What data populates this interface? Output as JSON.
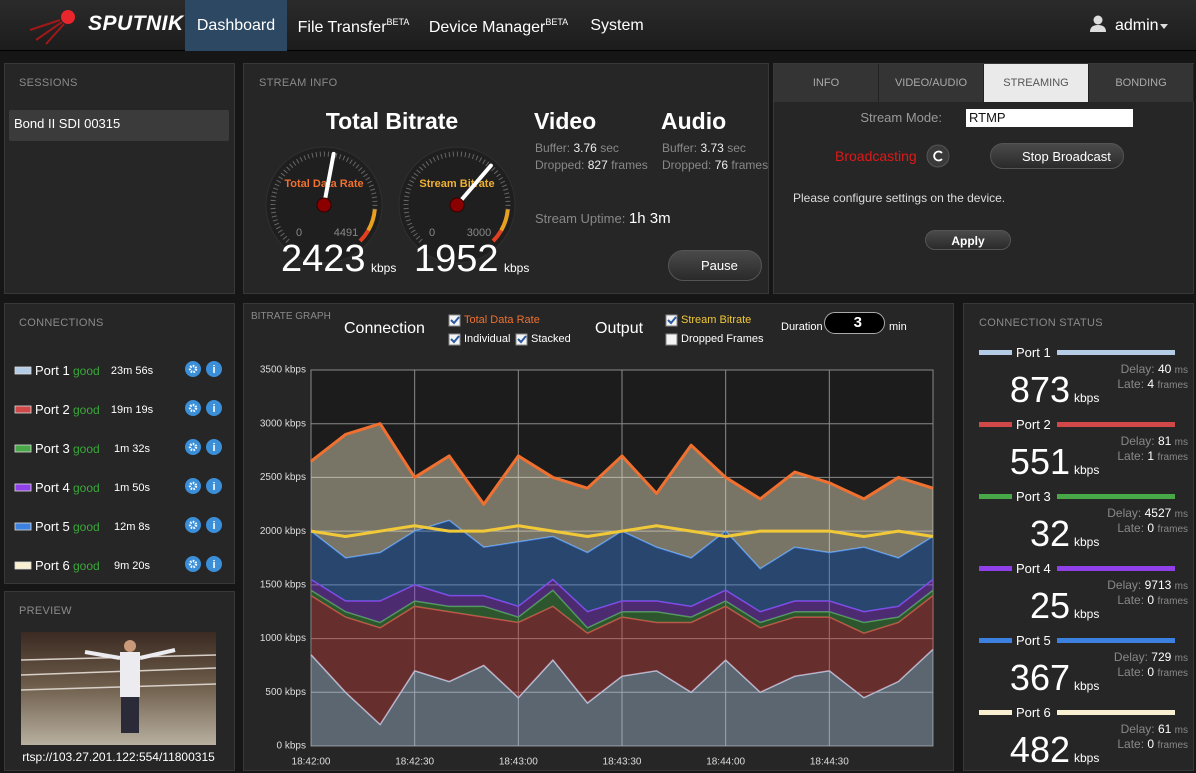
{
  "nav": {
    "brand": "SPUTNIK",
    "tabs": [
      {
        "label": "Dashboard"
      },
      {
        "label": "File Transfer",
        "badge": "BETA"
      },
      {
        "label": "Device Manager",
        "badge": "BETA"
      },
      {
        "label": "System"
      }
    ],
    "active": 0,
    "user": "admin"
  },
  "sessions": {
    "title": "SESSIONS",
    "items": [
      "Bond II SDI 00315"
    ]
  },
  "stream_info": {
    "title": "STREAM INFO",
    "total": {
      "heading": "Total Bitrate",
      "gauge_label": "Total Data Rate",
      "min": 0,
      "max": 4491,
      "value": 2423,
      "unit": "kbps"
    },
    "stream": {
      "gauge_label": "Stream Bitrate",
      "min": 0,
      "max": 3000,
      "value": 1952,
      "unit": "kbps"
    },
    "video": {
      "heading": "Video",
      "buffer_label": "Buffer:",
      "buffer": 3.76,
      "buffer_unit": "sec",
      "dropped_label": "Dropped:",
      "dropped": 827,
      "dropped_unit": "frames"
    },
    "audio": {
      "heading": "Audio",
      "buffer_label": "Buffer:",
      "buffer": 3.73,
      "buffer_unit": "sec",
      "dropped_label": "Dropped:",
      "dropped": 76,
      "dropped_unit": "frames"
    },
    "uptime_label": "Stream Uptime:",
    "uptime": "1h 3m",
    "pause": "Pause"
  },
  "settings": {
    "tabs": [
      "INFO",
      "VIDEO/AUDIO",
      "STREAMING",
      "BONDING"
    ],
    "active": 2,
    "mode_label": "Stream Mode:",
    "mode": "RTMP",
    "status": "Broadcasting",
    "stop": "Stop Broadcast",
    "message": "Please configure settings on the device.",
    "apply": "Apply"
  },
  "connections": {
    "title": "CONNECTIONS",
    "ports": [
      {
        "name": "Port 1",
        "status": "good",
        "uptime": "23m 56s"
      },
      {
        "name": "Port 2",
        "status": "good",
        "uptime": "19m 19s"
      },
      {
        "name": "Port 3",
        "status": "good",
        "uptime": "1m 32s"
      },
      {
        "name": "Port 4",
        "status": "good",
        "uptime": "1m 50s"
      },
      {
        "name": "Port 5",
        "status": "good",
        "uptime": "12m 8s"
      },
      {
        "name": "Port 6",
        "status": "good",
        "uptime": "9m 20s"
      }
    ]
  },
  "preview": {
    "title": "PREVIEW",
    "url": "rtsp://103.27.201.122:554/11800315"
  },
  "connection_status": {
    "title": "CONNECTION STATUS",
    "delay_label": "Delay:",
    "late_label": "Late:",
    "bitrate_unit": "kbps",
    "delay_unit": "ms",
    "late_unit": "frames",
    "ports": [
      {
        "name": "Port 1",
        "bitrate": 873,
        "delay": 40,
        "late": 4
      },
      {
        "name": "Port 2",
        "bitrate": 551,
        "delay": 81,
        "late": 1
      },
      {
        "name": "Port 3",
        "bitrate": 32,
        "delay": 4527,
        "late": 0
      },
      {
        "name": "Port 4",
        "bitrate": 25,
        "delay": 9713,
        "late": 0
      },
      {
        "name": "Port 5",
        "bitrate": 367,
        "delay": 729,
        "late": 0
      },
      {
        "name": "Port 6",
        "bitrate": 482,
        "delay": 61,
        "late": 0
      }
    ]
  },
  "graph_controls": {
    "connection_label": "Connection",
    "output_label": "Output",
    "options": [
      {
        "label": "Total Data Rate",
        "checked": true
      },
      {
        "label": "Individual",
        "checked": true
      },
      {
        "label": "Stacked",
        "checked": true
      },
      {
        "label": "Stream Bitrate",
        "checked": true
      },
      {
        "label": "Dropped Frames",
        "checked": false
      }
    ],
    "duration_label": "Duration",
    "duration": 3,
    "duration_unit": "min"
  },
  "chart_data": {
    "type": "area",
    "title": "BITRATE GRAPH",
    "stacked": true,
    "grid": true,
    "x": [
      "18:42:00",
      "18:42:10",
      "18:42:20",
      "18:42:30",
      "18:42:40",
      "18:42:50",
      "18:43:00",
      "18:43:10",
      "18:43:20",
      "18:43:30",
      "18:43:40",
      "18:43:50",
      "18:44:00",
      "18:44:10",
      "18:44:20",
      "18:44:30",
      "18:44:40",
      "18:44:50",
      "18:45:00"
    ],
    "xlim": [
      "18:42:00",
      "18:45:00"
    ],
    "xticks": [
      "18:42:00",
      "18:42:30",
      "18:43:00",
      "18:43:30",
      "18:44:00",
      "18:44:30"
    ],
    "ylim": [
      0,
      3500
    ],
    "yticks": [
      {
        "value": 0,
        "label": "0 kbps"
      },
      {
        "value": 500,
        "label": "500 kbps"
      },
      {
        "value": 1000,
        "label": "1000 kbps"
      },
      {
        "value": 1500,
        "label": "1500 kbps"
      },
      {
        "value": 2000,
        "label": "2000 kbps"
      },
      {
        "value": 2500,
        "label": "2500 kbps"
      },
      {
        "value": 3000,
        "label": "3000 kbps"
      },
      {
        "value": 3500,
        "label": "3500 kbps"
      }
    ],
    "series": [
      {
        "name": "Port 1",
        "color": "#b4cce6",
        "stack": true,
        "values": [
          850,
          500,
          200,
          700,
          600,
          750,
          450,
          800,
          400,
          650,
          700,
          500,
          800,
          500,
          650,
          700,
          450,
          600,
          900
        ]
      },
      {
        "name": "Port 2",
        "color": "#d04848",
        "stack": true,
        "values": [
          550,
          700,
          900,
          600,
          650,
          450,
          700,
          500,
          650,
          550,
          450,
          650,
          500,
          600,
          550,
          500,
          600,
          550,
          500
        ]
      },
      {
        "name": "Port 3",
        "color": "#48a848",
        "stack": true,
        "values": [
          50,
          50,
          50,
          50,
          50,
          100,
          50,
          150,
          50,
          50,
          100,
          50,
          50,
          50,
          50,
          50,
          100,
          50,
          50
        ]
      },
      {
        "name": "Port 4",
        "color": "#9040e8",
        "stack": true,
        "values": [
          100,
          100,
          200,
          150,
          100,
          100,
          100,
          100,
          150,
          100,
          100,
          100,
          100,
          100,
          100,
          100,
          100,
          100,
          100
        ]
      },
      {
        "name": "Port 5",
        "color": "#3c80e0",
        "stack": true,
        "values": [
          450,
          400,
          450,
          500,
          700,
          450,
          600,
          400,
          550,
          650,
          500,
          450,
          550,
          400,
          500,
          450,
          600,
          450,
          400
        ]
      },
      {
        "name": "Port 6",
        "color": "#f8f0d0",
        "stack": true,
        "values": [
          650,
          1150,
          1200,
          500,
          600,
          400,
          800,
          550,
          600,
          700,
          500,
          1050,
          500,
          650,
          700,
          650,
          450,
          750,
          450
        ]
      },
      {
        "name": "Total Data Rate",
        "color": "#f07030",
        "stack": false,
        "values": [
          2650,
          2900,
          3000,
          2500,
          2700,
          2250,
          2700,
          2500,
          2400,
          2700,
          2350,
          2800,
          2500,
          2300,
          2550,
          2450,
          2300,
          2500,
          2400
        ]
      },
      {
        "name": "Stream Bitrate",
        "color": "#f0c838",
        "stack": false,
        "values": [
          2000,
          1950,
          2000,
          2050,
          2000,
          2000,
          2050,
          2000,
          1950,
          2000,
          2050,
          2000,
          1950,
          2000,
          2000,
          2000,
          1950,
          2000,
          1950
        ]
      }
    ]
  }
}
